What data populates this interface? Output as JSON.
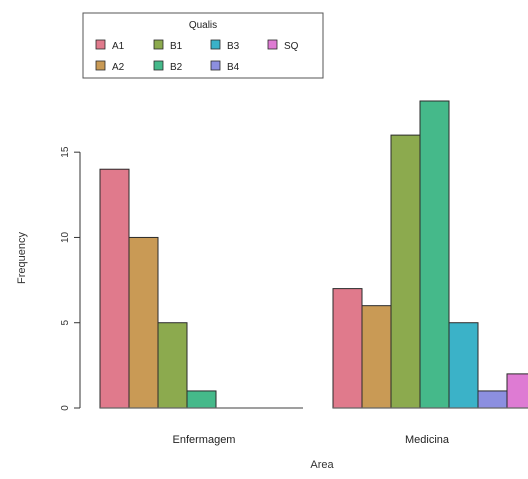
{
  "chart_data": {
    "type": "bar",
    "title": "",
    "xlabel": "Area",
    "ylabel": "Frequency",
    "categories": [
      "Enfermagem",
      "Medicina"
    ],
    "ylim": [
      0,
      18
    ],
    "yticks": [
      0,
      5,
      10,
      15
    ],
    "grid": false,
    "legend": {
      "title": "Qualis",
      "placement": "top-left"
    },
    "series": [
      {
        "name": "A1",
        "color": "#E07A8C",
        "values": [
          14,
          7
        ]
      },
      {
        "name": "A2",
        "color": "#C99A55",
        "values": [
          10,
          6
        ]
      },
      {
        "name": "B1",
        "color": "#8CAA4E",
        "values": [
          5,
          16
        ]
      },
      {
        "name": "B2",
        "color": "#45B98A",
        "values": [
          1,
          18
        ]
      },
      {
        "name": "B3",
        "color": "#3BB2C8",
        "values": [
          0,
          5
        ]
      },
      {
        "name": "B4",
        "color": "#8C8FE0",
        "values": [
          0,
          1
        ]
      },
      {
        "name": "SQ",
        "color": "#DE7BD3",
        "values": [
          0,
          2
        ]
      }
    ]
  }
}
